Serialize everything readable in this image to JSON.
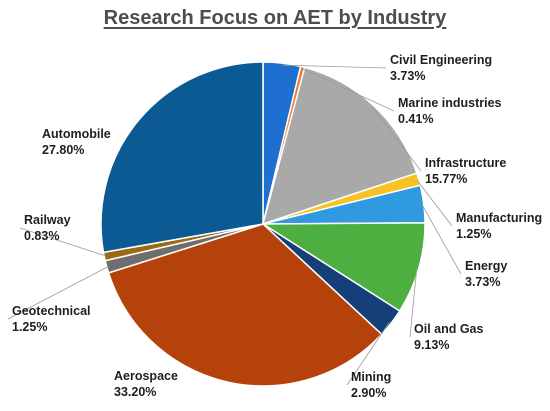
{
  "chart_data": {
    "type": "pie",
    "title": "Research Focus on AET by Industry",
    "start_angle_deg": 0,
    "direction": "clockwise",
    "legend": "none",
    "slices": [
      {
        "label": "Civil Engineering",
        "value": 3.73,
        "value_label": "3.73%",
        "color": "#1f6fd1"
      },
      {
        "label": "Marine industries",
        "value": 0.41,
        "value_label": "0.41%",
        "color": "#ef7a2f"
      },
      {
        "label": "Infrastructure",
        "value": 15.77,
        "value_label": "15.77%",
        "color": "#a9a9a9"
      },
      {
        "label": "Manufacturing",
        "value": 1.25,
        "value_label": "1.25%",
        "color": "#f7c324"
      },
      {
        "label": "Energy",
        "value": 3.73,
        "value_label": "3.73%",
        "color": "#2f9ae0"
      },
      {
        "label": "Oil and Gas",
        "value": 9.13,
        "value_label": "9.13%",
        "color": "#4caf3f"
      },
      {
        "label": "Mining",
        "value": 2.9,
        "value_label": "2.90%",
        "color": "#143f78"
      },
      {
        "label": "Aerospace",
        "value": 33.2,
        "value_label": "33.20%",
        "color": "#b5420a"
      },
      {
        "label": "Geotechnical",
        "value": 1.25,
        "value_label": "1.25%",
        "color": "#6e6e6e"
      },
      {
        "label": "Railway",
        "value": 0.83,
        "value_label": "0.83%",
        "color": "#9b6a12"
      },
      {
        "label": "Automobile",
        "value": 27.8,
        "value_label": "27.80%",
        "color": "#0c5a94"
      }
    ]
  }
}
